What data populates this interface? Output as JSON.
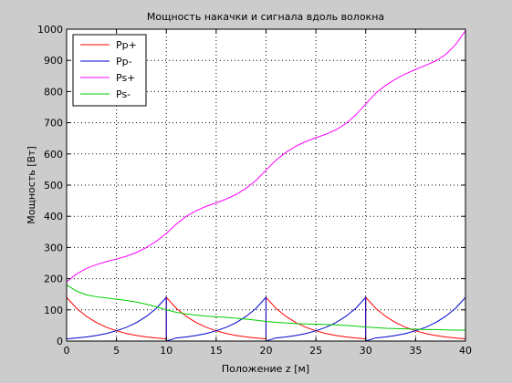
{
  "chart_data": {
    "type": "line",
    "title": "Мощность накачки и сигнала вдоль волокна",
    "xlabel": "Положение z [м]",
    "ylabel": "Мощность [Вт]",
    "xlim": [
      0,
      40
    ],
    "ylim": [
      0,
      1000
    ],
    "xticks": [
      0,
      5,
      10,
      15,
      20,
      25,
      30,
      35,
      40
    ],
    "yticks": [
      0,
      100,
      200,
      300,
      400,
      500,
      600,
      700,
      800,
      900,
      1000
    ],
    "grid": true,
    "legend_position": "top-left",
    "series": [
      {
        "name": "Pp+",
        "color": "#ff0000",
        "x": [
          0,
          1,
          2,
          3,
          4,
          5,
          6,
          7,
          8,
          9,
          9.99,
          10,
          11,
          12,
          13,
          14,
          15,
          16,
          17,
          18,
          19,
          19.99,
          20,
          21,
          22,
          23,
          24,
          25,
          26,
          27,
          28,
          29,
          29.99,
          30,
          31,
          32,
          33,
          34,
          35,
          36,
          37,
          38,
          39,
          40
        ],
        "y": [
          140,
          105,
          79,
          59,
          44,
          33,
          24,
          18,
          13,
          10,
          7,
          140,
          105,
          79,
          59,
          44,
          33,
          24,
          18,
          13,
          10,
          7,
          140,
          105,
          79,
          59,
          44,
          33,
          24,
          18,
          13,
          10,
          7,
          140,
          105,
          79,
          59,
          44,
          33,
          24,
          18,
          13,
          10,
          7
        ]
      },
      {
        "name": "Pp-",
        "color": "#0000cc",
        "x": [
          0,
          1,
          2,
          3,
          4,
          5,
          6,
          7,
          8,
          9,
          9.99,
          10,
          11,
          12,
          13,
          14,
          15,
          16,
          17,
          18,
          19,
          19.99,
          20,
          21,
          22,
          23,
          24,
          25,
          26,
          27,
          28,
          29,
          29.99,
          30,
          31,
          32,
          33,
          34,
          35,
          36,
          37,
          38,
          39,
          40
        ],
        "y": [
          7,
          10,
          13,
          18,
          24,
          33,
          44,
          59,
          79,
          105,
          140,
          0,
          10,
          13,
          18,
          24,
          33,
          44,
          59,
          79,
          105,
          140,
          0,
          10,
          13,
          18,
          24,
          33,
          44,
          59,
          79,
          105,
          140,
          0,
          10,
          13,
          18,
          24,
          33,
          44,
          59,
          79,
          105,
          140
        ]
      },
      {
        "name": "Ps+",
        "color": "#ff00ff",
        "x": [
          0,
          1,
          2,
          3,
          4,
          5,
          6,
          7,
          8,
          9,
          10,
          11,
          12,
          13,
          14,
          15,
          16,
          17,
          18,
          19,
          20,
          21,
          22,
          23,
          24,
          25,
          26,
          27,
          28,
          29,
          30,
          31,
          32,
          33,
          34,
          35,
          36,
          37,
          38,
          39,
          40
        ],
        "y": [
          190,
          215,
          233,
          245,
          255,
          263,
          272,
          284,
          300,
          320,
          345,
          375,
          400,
          418,
          432,
          443,
          455,
          470,
          490,
          515,
          548,
          580,
          605,
          625,
          640,
          652,
          663,
          677,
          697,
          725,
          760,
          795,
          820,
          840,
          857,
          871,
          884,
          898,
          918,
          950,
          995
        ]
      },
      {
        "name": "Ps-",
        "color": "#00cc00",
        "x": [
          0,
          1,
          2,
          3,
          4,
          5,
          6,
          7,
          8,
          9,
          10,
          11,
          12,
          13,
          14,
          15,
          16,
          17,
          18,
          19,
          20,
          21,
          22,
          23,
          24,
          25,
          26,
          27,
          28,
          29,
          30,
          31,
          32,
          33,
          34,
          35,
          36,
          37,
          38,
          39,
          40
        ],
        "y": [
          180,
          160,
          148,
          142,
          138,
          134,
          130,
          125,
          118,
          110,
          100,
          92,
          87,
          83,
          80,
          78,
          76,
          73,
          70,
          67,
          63,
          60,
          58,
          56,
          55,
          54,
          53,
          52,
          50,
          48,
          45,
          43,
          41,
          40,
          39,
          38,
          37,
          37,
          36,
          35,
          35
        ]
      }
    ]
  }
}
